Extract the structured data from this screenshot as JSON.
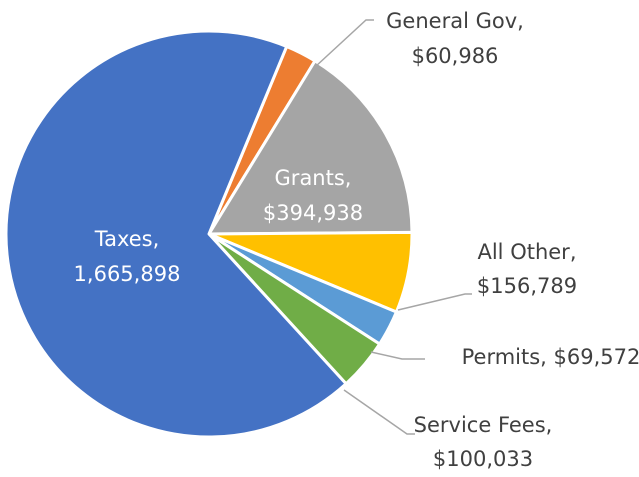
{
  "chart_data": {
    "type": "pie",
    "title": "",
    "slices": [
      {
        "label": "General Gov",
        "value": 60986,
        "value_text": "$60,986",
        "color": "#ED7D31"
      },
      {
        "label": "Grants",
        "value": 394938,
        "value_text": "$394,938",
        "color": "#A5A5A5"
      },
      {
        "label": "All Other",
        "value": 156789,
        "value_text": "$156,789",
        "color": "#FFC000"
      },
      {
        "label": "Permits",
        "value": 69572,
        "value_text": "$69,572",
        "color": "#5B9BD5"
      },
      {
        "label": "Service Fees",
        "value": 100033,
        "value_text": "$100,033",
        "color": "#70AD47"
      },
      {
        "label": "Taxes",
        "value": 1665898,
        "value_text": "1,665,898",
        "color": "#4472C4"
      }
    ],
    "leader_line_color": "#A6A6A6"
  }
}
